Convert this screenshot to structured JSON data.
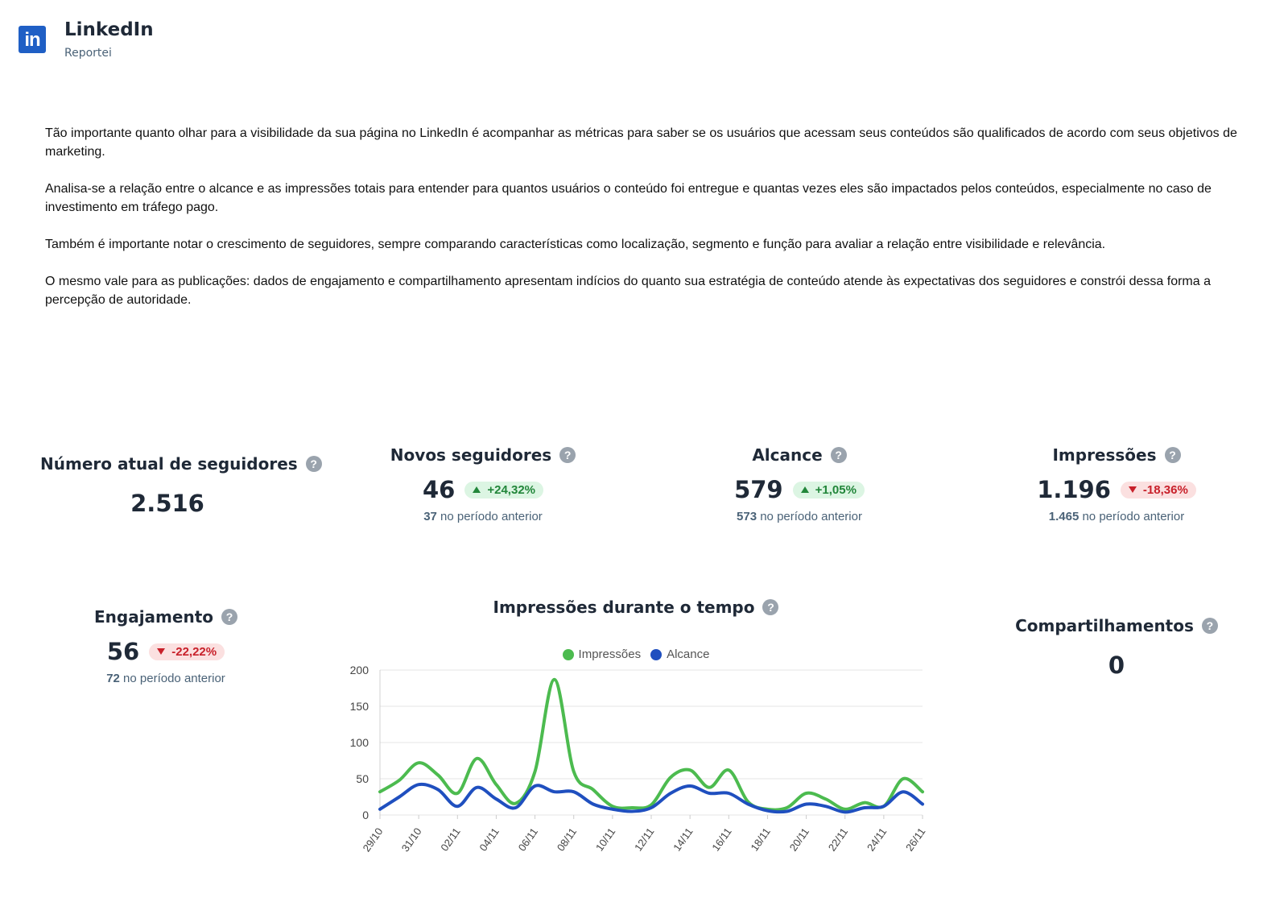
{
  "header": {
    "icon": "linkedin-logo-icon",
    "logo_text": "in",
    "title": "LinkedIn",
    "subtitle": "Reportei"
  },
  "description": [
    "Tão importante quanto olhar para a visibilidade da sua página no LinkedIn é acompanhar as métricas para saber se os usuários que acessam seus conteúdos são qualificados de acordo com seus objetivos de marketing.",
    "Analisa-se a relação entre o alcance e as impressões totais para entender para quantos usuários o conteúdo foi entregue e quantas vezes eles são impactados pelos conteúdos, especialmente no caso de investimento em tráfego pago.",
    "Também é importante notar o crescimento de seguidores, sempre comparando características como localização, segmento e função para avaliar a relação entre visibilidade e relevância.",
    "O mesmo vale para as publicações: dados de engajamento e compartilhamento apresentam indícios do quanto sua estratégia de conteúdo atende às expectativas dos seguidores e constrói dessa forma a percepção de autoridade."
  ],
  "help_glyph": "?",
  "prev_suffix": "no período anterior",
  "metrics": {
    "followers": {
      "title": "Número atual de seguidores",
      "value": "2.516"
    },
    "new_followers": {
      "title": "Novos seguidores",
      "value": "46",
      "change": "+24,32%",
      "prev": "37"
    },
    "reach": {
      "title": "Alcance",
      "value": "579",
      "change": "+1,05%",
      "prev": "573"
    },
    "impressions": {
      "title": "Impressões",
      "value": "1.196",
      "change": "-18,36%",
      "prev": "1.465"
    },
    "engagement": {
      "title": "Engajamento",
      "value": "56",
      "change": "-22,22%",
      "prev": "72"
    },
    "shares": {
      "title": "Compartilhamentos",
      "value": "0"
    }
  },
  "colors": {
    "up": "#22863a",
    "down": "#c8202a",
    "impressions": "#4cbb4f",
    "reach": "#1f4fbf"
  },
  "chart_title": "Impressões durante o tempo",
  "chart_data": {
    "type": "line",
    "title": "Impressões durante o tempo",
    "ylim": [
      0,
      200
    ],
    "yticks": [
      0,
      50,
      100,
      150,
      200
    ],
    "x": [
      "29/10",
      "30/10",
      "31/10",
      "01/11",
      "02/11",
      "03/11",
      "04/11",
      "05/11",
      "06/11",
      "07/11",
      "08/11",
      "09/11",
      "10/11",
      "11/11",
      "12/11",
      "13/11",
      "14/11",
      "15/11",
      "16/11",
      "17/11",
      "18/11",
      "19/11",
      "20/11",
      "21/11",
      "22/11",
      "23/11",
      "24/11",
      "25/11",
      "26/11"
    ],
    "xtick_labels": [
      "29/10",
      "31/10",
      "02/11",
      "04/11",
      "06/11",
      "08/11",
      "10/11",
      "12/11",
      "14/11",
      "16/11",
      "18/11",
      "20/11",
      "22/11",
      "24/11",
      "26/11"
    ],
    "series": [
      {
        "name": "Impressões",
        "color": "#4cbb4f",
        "values": [
          32,
          48,
          72,
          55,
          30,
          78,
          42,
          16,
          60,
          187,
          60,
          35,
          12,
          10,
          14,
          52,
          62,
          38,
          62,
          18,
          8,
          10,
          30,
          22,
          8,
          17,
          12,
          50,
          32
        ]
      },
      {
        "name": "Alcance",
        "color": "#1f4fbf",
        "values": [
          8,
          25,
          42,
          35,
          12,
          38,
          22,
          10,
          40,
          32,
          32,
          15,
          8,
          5,
          10,
          30,
          40,
          30,
          30,
          15,
          6,
          5,
          15,
          12,
          4,
          10,
          12,
          32,
          15
        ]
      }
    ],
    "legend": "top",
    "grid": true
  }
}
